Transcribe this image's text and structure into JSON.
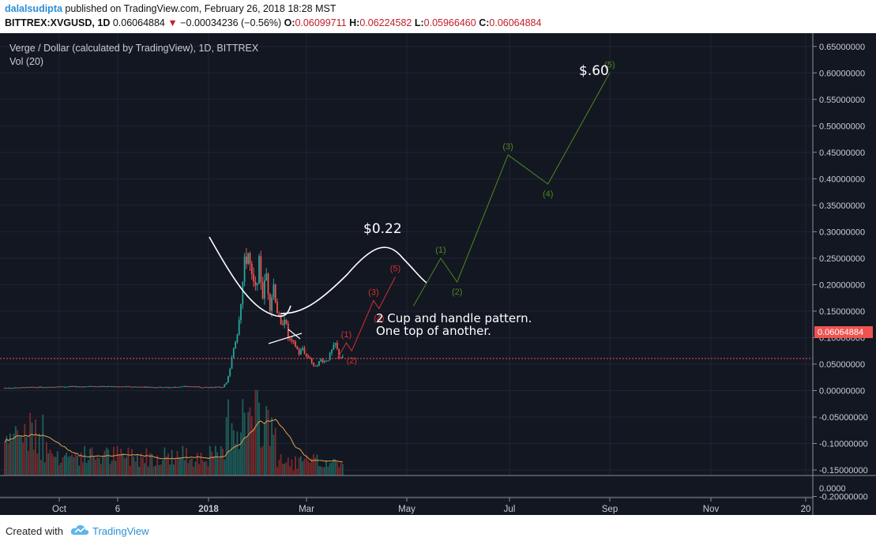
{
  "header": {
    "author": "dalalsudipta",
    "published_text": "published on TradingView.com, February 26, 2018 18:28 MST",
    "symbol": "BITTREX:XVGUSD, 1D",
    "price": "0.06064884",
    "arrow": "▼",
    "change": "−0.00034236 (−0.56%)",
    "o_label": "O:",
    "o_value": "0.06099711",
    "h_label": "H:",
    "h_value": "0.06224582",
    "l_label": "L:",
    "l_value": "0.05966460",
    "c_label": "C:",
    "c_value": "0.06064884"
  },
  "chart": {
    "legend_title": "Verge / Dollar (calculated by TradingView), 1D, BITTREX",
    "legend_vol": "Vol (20)",
    "last_price_label": "0.06064884",
    "last_price": 0.06064884,
    "annotation_line1": "2 Cup and handle pattern.",
    "annotation_line2": "One top of another.",
    "target_small": "$0.22",
    "target_big": "$.60",
    "colors": {
      "background": "#131722",
      "up": "#26a69a",
      "down": "#ef5350",
      "red_wave": "#d32f2f",
      "green_wave": "#4c8a1e",
      "cup": "#ffffff"
    }
  },
  "chart_data": {
    "type": "candlestick",
    "title": "Verge / Dollar (calculated by TradingView), 1D, BITTREX",
    "y_ticks": [
      "0.65000000",
      "0.60000000",
      "0.55000000",
      "0.50000000",
      "0.45000000",
      "0.40000000",
      "0.35000000",
      "0.30000000",
      "0.25000000",
      "0.20000000",
      "0.15000000",
      "0.10000000",
      "0.05000000",
      "0.00000000",
      "-0.05000000",
      "-0.10000000",
      "-0.15000000",
      "-0.20000000"
    ],
    "volume_tick": "0.0000",
    "x_ticks": [
      "Oct",
      "6",
      "2018",
      "Mar",
      "May",
      "Jul",
      "Sep",
      "Nov",
      "20"
    ],
    "ylim": [
      -0.235,
      0.675
    ],
    "price_path": [
      [
        0,
        0.005
      ],
      [
        25,
        0.007
      ],
      [
        50,
        0.008
      ],
      [
        75,
        0.007
      ],
      [
        90,
        0.006
      ],
      [
        100,
        0.008
      ],
      [
        110,
        0.006
      ],
      [
        120,
        0.007
      ],
      [
        122,
        0.015
      ],
      [
        124,
        0.04
      ],
      [
        126,
        0.08
      ],
      [
        128,
        0.11
      ],
      [
        130,
        0.17
      ],
      [
        132,
        0.24
      ],
      [
        134,
        0.26
      ],
      [
        136,
        0.21
      ],
      [
        138,
        0.19
      ],
      [
        140,
        0.24
      ],
      [
        142,
        0.18
      ],
      [
        144,
        0.22
      ],
      [
        146,
        0.16
      ],
      [
        148,
        0.2
      ],
      [
        150,
        0.15
      ],
      [
        152,
        0.12
      ],
      [
        154,
        0.14
      ],
      [
        156,
        0.1
      ],
      [
        158,
        0.09
      ],
      [
        160,
        0.085
      ],
      [
        162,
        0.07
      ],
      [
        164,
        0.08
      ],
      [
        166,
        0.065
      ],
      [
        168,
        0.062
      ],
      [
        170,
        0.045
      ],
      [
        172,
        0.05
      ],
      [
        174,
        0.058
      ],
      [
        176,
        0.055
      ],
      [
        178,
        0.06
      ],
      [
        180,
        0.075
      ],
      [
        182,
        0.088
      ],
      [
        184,
        0.065
      ],
      [
        186,
        0.061
      ]
    ],
    "waves": {
      "red": {
        "labels": [
          "(1)",
          "(2)",
          "(3)",
          "(4)",
          "(5)"
        ],
        "points": [
          [
            183,
            0.06
          ],
          [
            188,
            0.09
          ],
          [
            191,
            0.075
          ],
          [
            203,
            0.17
          ],
          [
            206,
            0.155
          ],
          [
            215,
            0.215
          ]
        ]
      },
      "green": {
        "labels": [
          "(1)",
          "(2)",
          "(3)",
          "(4)",
          "(5)"
        ],
        "points": [
          [
            225,
            0.16
          ],
          [
            240,
            0.25
          ],
          [
            249,
            0.205
          ],
          [
            277,
            0.445
          ],
          [
            299,
            0.39
          ],
          [
            333,
            0.6
          ]
        ]
      }
    },
    "annotations": [
      "2 Cup and handle pattern.",
      "One top of another.",
      "$0.22",
      "$.60"
    ]
  },
  "footer": {
    "created_with": "Created with",
    "brand": "TradingView"
  }
}
